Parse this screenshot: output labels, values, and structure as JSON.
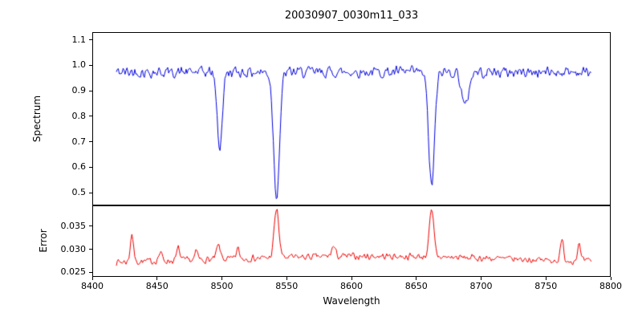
{
  "chart_data": {
    "type": "line",
    "title": "20030907_0030m11_033",
    "xlabel": "Wavelength",
    "xlim": [
      8400,
      8800
    ],
    "xticks": [
      8400,
      8450,
      8500,
      8550,
      8600,
      8650,
      8700,
      8750,
      8800
    ],
    "xtick_labels": [
      "8400",
      "8450",
      "8500",
      "8550",
      "8600",
      "8650",
      "8700",
      "8750",
      "8800"
    ],
    "x_data_range": [
      8418,
      8786
    ],
    "x_step": 0.75,
    "grid": false,
    "legend": "none",
    "subplots": [
      {
        "name": "spectrum",
        "ylabel": "Spectrum",
        "color": "#0000dd",
        "ylim": [
          0.45,
          1.13
        ],
        "yticks": [
          1.1,
          1.0,
          0.9,
          0.8,
          0.7,
          0.6,
          0.5
        ],
        "ytick_labels": [
          "1.1",
          "1.0",
          "0.9",
          "0.8",
          "0.7",
          "0.6",
          "0.5"
        ],
        "continuum_level": 1.0,
        "baseline": 0.975,
        "noise_amp": 0.055,
        "seed": 42,
        "absorption_lines": [
          {
            "center": 8498,
            "depth": 0.3,
            "width": 2.0,
            "min_value": 0.67
          },
          {
            "center": 8542,
            "depth": 0.49,
            "width": 2.3,
            "min_value": 0.49
          },
          {
            "center": 8662,
            "depth": 0.45,
            "width": 2.3,
            "min_value": 0.53
          },
          {
            "center": 8688,
            "depth": 0.14,
            "width": 2.5,
            "min_value": 0.78
          }
        ]
      },
      {
        "name": "error",
        "ylabel": "Error",
        "color": "#ee0000",
        "ylim": [
          0.024,
          0.0395
        ],
        "yticks": [
          0.035,
          0.03,
          0.025
        ],
        "ytick_labels": [
          "0.035",
          "0.030",
          "0.025"
        ],
        "baseline": 0.0268,
        "mid_bump": {
          "center": 8615,
          "height": 0.0016,
          "width": 110
        },
        "noise_amp": 0.0018,
        "seed": 7,
        "spikes": [
          {
            "center": 8430,
            "height": 0.0062,
            "width": 1.2
          },
          {
            "center": 8452,
            "height": 0.0018,
            "width": 1.4
          },
          {
            "center": 8466,
            "height": 0.0028,
            "width": 1.2
          },
          {
            "center": 8480,
            "height": 0.0018,
            "width": 1.2
          },
          {
            "center": 8497,
            "height": 0.003,
            "width": 1.5
          },
          {
            "center": 8512,
            "height": 0.0022,
            "width": 1.2
          },
          {
            "center": 8542,
            "height": 0.0108,
            "width": 1.8
          },
          {
            "center": 8586,
            "height": 0.0022,
            "width": 1.5
          },
          {
            "center": 8662,
            "height": 0.01,
            "width": 1.8
          },
          {
            "center": 8763,
            "height": 0.0044,
            "width": 1.2
          },
          {
            "center": 8776,
            "height": 0.0036,
            "width": 1.2
          }
        ]
      }
    ]
  }
}
